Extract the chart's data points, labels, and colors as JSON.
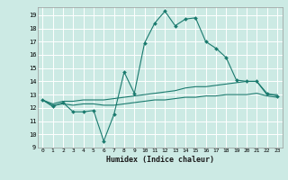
{
  "title": "",
  "xlabel": "Humidex (Indice chaleur)",
  "ylabel": "",
  "bg_color": "#cceae4",
  "grid_color": "#ffffff",
  "line_color": "#1a7a6e",
  "xlim": [
    -0.5,
    23.5
  ],
  "ylim": [
    9,
    19.6
  ],
  "yticks": [
    9,
    10,
    11,
    12,
    13,
    14,
    15,
    16,
    17,
    18,
    19
  ],
  "xticks": [
    0,
    1,
    2,
    3,
    4,
    5,
    6,
    7,
    8,
    9,
    10,
    11,
    12,
    13,
    14,
    15,
    16,
    17,
    18,
    19,
    20,
    21,
    22,
    23
  ],
  "series1_x": [
    0,
    1,
    2,
    3,
    4,
    5,
    6,
    7,
    8,
    9,
    10,
    11,
    12,
    13,
    14,
    15,
    16,
    17,
    18,
    19,
    20,
    21,
    22,
    23
  ],
  "series1_y": [
    12.6,
    12.1,
    12.4,
    11.7,
    11.7,
    11.8,
    9.5,
    11.5,
    14.7,
    13.1,
    16.9,
    18.4,
    19.3,
    18.2,
    18.7,
    18.8,
    17.0,
    16.5,
    15.8,
    14.1,
    14.0,
    14.0,
    13.1,
    12.9
  ],
  "series2_x": [
    0,
    1,
    2,
    3,
    4,
    5,
    6,
    7,
    8,
    9,
    10,
    11,
    12,
    13,
    14,
    15,
    16,
    17,
    18,
    19,
    20,
    21,
    22,
    23
  ],
  "series2_y": [
    12.6,
    12.3,
    12.5,
    12.5,
    12.6,
    12.6,
    12.6,
    12.7,
    12.8,
    12.9,
    13.0,
    13.1,
    13.2,
    13.3,
    13.5,
    13.6,
    13.6,
    13.7,
    13.8,
    13.9,
    14.0,
    14.0,
    13.0,
    13.0
  ],
  "series3_x": [
    0,
    1,
    2,
    3,
    4,
    5,
    6,
    7,
    8,
    9,
    10,
    11,
    12,
    13,
    14,
    15,
    16,
    17,
    18,
    19,
    20,
    21,
    22,
    23
  ],
  "series3_y": [
    12.6,
    12.2,
    12.3,
    12.2,
    12.3,
    12.3,
    12.2,
    12.2,
    12.3,
    12.4,
    12.5,
    12.6,
    12.6,
    12.7,
    12.8,
    12.8,
    12.9,
    12.9,
    13.0,
    13.0,
    13.0,
    13.1,
    12.9,
    12.8
  ]
}
